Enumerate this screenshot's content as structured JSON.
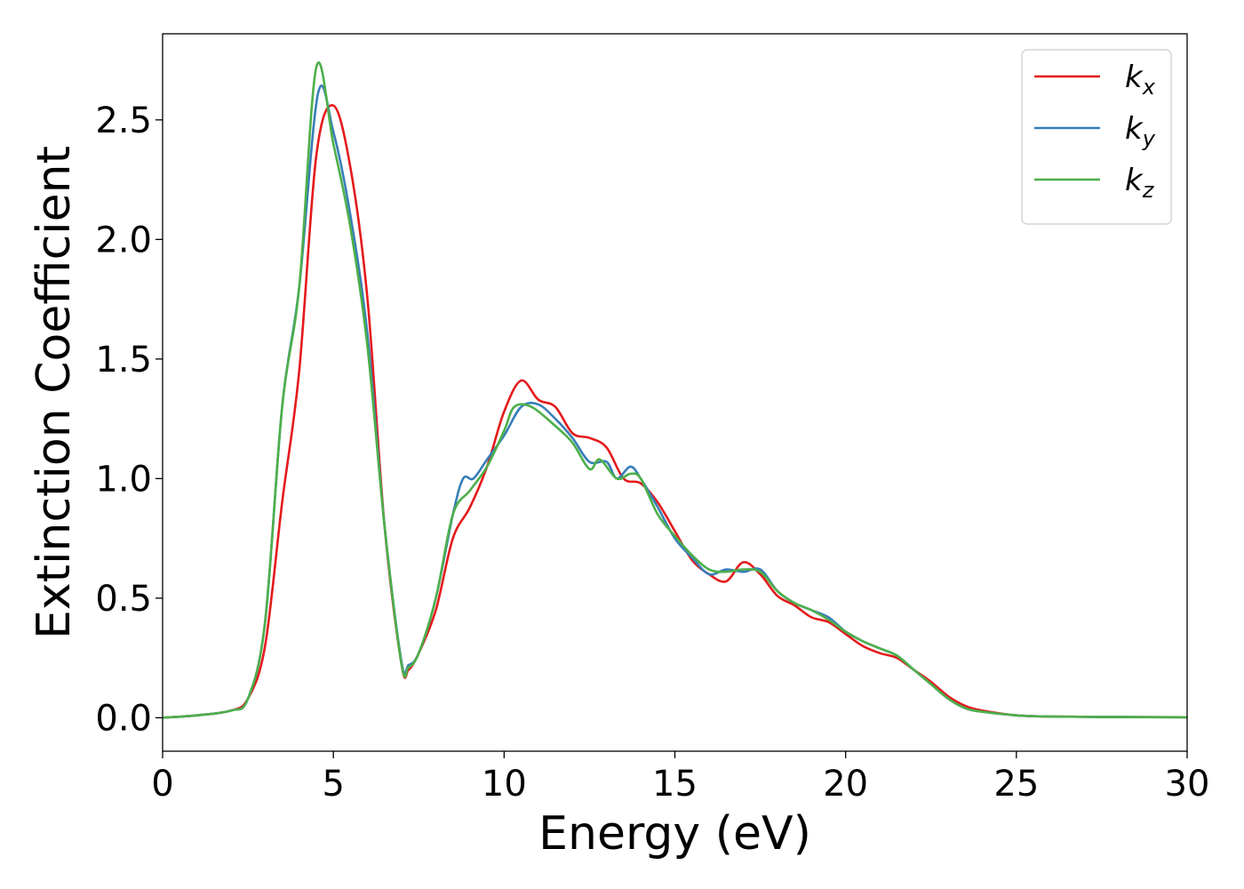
{
  "chart_data": {
    "type": "line",
    "xlabel": "Energy (eV)",
    "ylabel": "Extinction Coefficient",
    "xlim": [
      0,
      30
    ],
    "ylim": [
      -0.14,
      2.86
    ],
    "xticks": [
      0,
      5,
      10,
      15,
      20,
      25,
      30
    ],
    "xtick_labels": [
      "0",
      "5",
      "10",
      "15",
      "20",
      "25",
      "30"
    ],
    "yticks": [
      0.0,
      0.5,
      1.0,
      1.5,
      2.0,
      2.5
    ],
    "ytick_labels": [
      "0.0",
      "0.5",
      "1.0",
      "1.5",
      "2.0",
      "2.5"
    ],
    "grid": false,
    "legend_position": "top-right",
    "series": [
      {
        "name": "k_x",
        "label_base": "k",
        "label_sub": "x",
        "color": "#e41a1c",
        "points": [
          [
            0,
            0
          ],
          [
            1,
            0.01
          ],
          [
            2,
            0.03
          ],
          [
            2.5,
            0.08
          ],
          [
            3,
            0.3
          ],
          [
            3.5,
            0.9
          ],
          [
            4,
            1.45
          ],
          [
            4.5,
            2.35
          ],
          [
            5,
            2.56
          ],
          [
            5.5,
            2.3
          ],
          [
            6,
            1.75
          ],
          [
            6.5,
            0.8
          ],
          [
            7,
            0.22
          ],
          [
            7.2,
            0.2
          ],
          [
            7.5,
            0.27
          ],
          [
            8,
            0.45
          ],
          [
            8.5,
            0.75
          ],
          [
            9,
            0.88
          ],
          [
            9.5,
            1.05
          ],
          [
            10,
            1.28
          ],
          [
            10.5,
            1.41
          ],
          [
            11,
            1.33
          ],
          [
            11.5,
            1.3
          ],
          [
            12,
            1.19
          ],
          [
            12.5,
            1.17
          ],
          [
            13,
            1.13
          ],
          [
            13.5,
            1.0
          ],
          [
            14,
            0.98
          ],
          [
            14.5,
            0.9
          ],
          [
            15,
            0.78
          ],
          [
            15.5,
            0.66
          ],
          [
            16,
            0.6
          ],
          [
            16.5,
            0.57
          ],
          [
            17,
            0.65
          ],
          [
            17.5,
            0.6
          ],
          [
            18,
            0.51
          ],
          [
            18.5,
            0.47
          ],
          [
            19,
            0.42
          ],
          [
            19.5,
            0.4
          ],
          [
            20,
            0.35
          ],
          [
            20.5,
            0.3
          ],
          [
            21,
            0.27
          ],
          [
            21.5,
            0.25
          ],
          [
            22,
            0.2
          ],
          [
            22.5,
            0.15
          ],
          [
            23,
            0.09
          ],
          [
            23.5,
            0.05
          ],
          [
            24,
            0.03
          ],
          [
            25,
            0.01
          ],
          [
            26,
            0.005
          ],
          [
            28,
            0.003
          ],
          [
            30,
            0.002
          ]
        ]
      },
      {
        "name": "k_y",
        "label_base": "k",
        "label_sub": "y",
        "color": "#377eb8",
        "points": [
          [
            0,
            0
          ],
          [
            1,
            0.01
          ],
          [
            2,
            0.03
          ],
          [
            2.5,
            0.08
          ],
          [
            3,
            0.4
          ],
          [
            3.5,
            1.3
          ],
          [
            4,
            1.8
          ],
          [
            4.55,
            2.61
          ],
          [
            5,
            2.45
          ],
          [
            5.5,
            2.1
          ],
          [
            6,
            1.6
          ],
          [
            6.5,
            0.8
          ],
          [
            7,
            0.23
          ],
          [
            7.2,
            0.22
          ],
          [
            7.5,
            0.27
          ],
          [
            8,
            0.5
          ],
          [
            8.5,
            0.85
          ],
          [
            8.8,
            1.0
          ],
          [
            9.1,
            1.0
          ],
          [
            9.5,
            1.08
          ],
          [
            10,
            1.18
          ],
          [
            10.5,
            1.3
          ],
          [
            11,
            1.31
          ],
          [
            11.5,
            1.25
          ],
          [
            12,
            1.17
          ],
          [
            12.5,
            1.07
          ],
          [
            13,
            1.07
          ],
          [
            13.3,
            1.0
          ],
          [
            13.7,
            1.05
          ],
          [
            14,
            1.0
          ],
          [
            14.5,
            0.88
          ],
          [
            15,
            0.75
          ],
          [
            15.5,
            0.67
          ],
          [
            16,
            0.6
          ],
          [
            16.5,
            0.62
          ],
          [
            17,
            0.61
          ],
          [
            17.5,
            0.62
          ],
          [
            18,
            0.53
          ],
          [
            18.5,
            0.48
          ],
          [
            19,
            0.45
          ],
          [
            19.5,
            0.42
          ],
          [
            20,
            0.36
          ],
          [
            20.5,
            0.32
          ],
          [
            21,
            0.29
          ],
          [
            21.5,
            0.26
          ],
          [
            22,
            0.2
          ],
          [
            22.5,
            0.14
          ],
          [
            23,
            0.08
          ],
          [
            23.5,
            0.04
          ],
          [
            24,
            0.025
          ],
          [
            25,
            0.01
          ],
          [
            26,
            0.005
          ],
          [
            28,
            0.003
          ],
          [
            30,
            0.002
          ]
        ]
      },
      {
        "name": "k_z",
        "label_base": "k",
        "label_sub": "z",
        "color": "#4daf4a",
        "points": [
          [
            0,
            0
          ],
          [
            1,
            0.01
          ],
          [
            2,
            0.03
          ],
          [
            2.5,
            0.08
          ],
          [
            3,
            0.4
          ],
          [
            3.5,
            1.3
          ],
          [
            4,
            1.8
          ],
          [
            4.5,
            2.72
          ],
          [
            5,
            2.4
          ],
          [
            5.5,
            2.05
          ],
          [
            6,
            1.55
          ],
          [
            6.5,
            0.8
          ],
          [
            7,
            0.22
          ],
          [
            7.2,
            0.21
          ],
          [
            7.5,
            0.27
          ],
          [
            8,
            0.5
          ],
          [
            8.5,
            0.85
          ],
          [
            9,
            0.95
          ],
          [
            9.5,
            1.05
          ],
          [
            10,
            1.2
          ],
          [
            10.3,
            1.3
          ],
          [
            10.8,
            1.3
          ],
          [
            11.5,
            1.22
          ],
          [
            12,
            1.15
          ],
          [
            12.5,
            1.04
          ],
          [
            12.8,
            1.08
          ],
          [
            13.3,
            1.0
          ],
          [
            13.7,
            1.02
          ],
          [
            14,
            1.0
          ],
          [
            14.5,
            0.85
          ],
          [
            15,
            0.76
          ],
          [
            15.5,
            0.68
          ],
          [
            16,
            0.62
          ],
          [
            16.5,
            0.61
          ],
          [
            17,
            0.62
          ],
          [
            17.5,
            0.61
          ],
          [
            18,
            0.53
          ],
          [
            18.5,
            0.48
          ],
          [
            19,
            0.45
          ],
          [
            19.5,
            0.41
          ],
          [
            20,
            0.36
          ],
          [
            20.5,
            0.32
          ],
          [
            21,
            0.29
          ],
          [
            21.5,
            0.26
          ],
          [
            22,
            0.2
          ],
          [
            22.5,
            0.14
          ],
          [
            23,
            0.08
          ],
          [
            23.5,
            0.04
          ],
          [
            24,
            0.025
          ],
          [
            25,
            0.01
          ],
          [
            26,
            0.005
          ],
          [
            28,
            0.003
          ],
          [
            30,
            0.002
          ]
        ]
      }
    ]
  }
}
